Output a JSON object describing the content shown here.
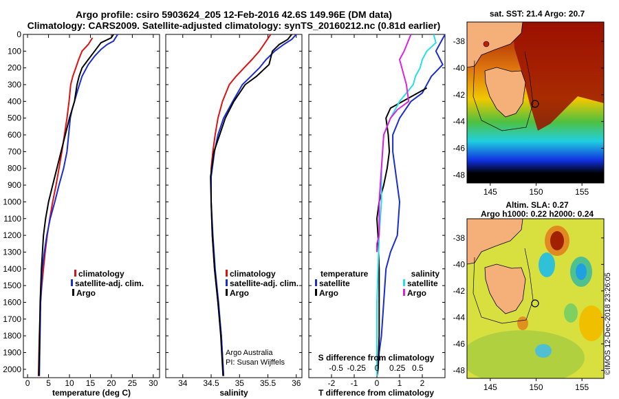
{
  "header": {
    "title_line1": "Argo profile: csiro 5903624_205 12-Feb-2016 42.6S 149.96E (DM data)",
    "title_line2": "Climatology: CARS2009. Satellite-adjusted climatology: synTS_20160212.nc (0.81d earlier)"
  },
  "colors": {
    "climatology": "#e01010",
    "satellite": "#1a2bd6",
    "argo": "#000000",
    "sat_salinity": "#22e0e8",
    "argo_salinity": "#e020e0"
  },
  "chart_data": [
    {
      "type": "line",
      "title": "",
      "xlabel": "temperature (deg C)",
      "ylabel": "",
      "xlim": [
        -1,
        31.5
      ],
      "ylim": [
        2050,
        0
      ],
      "x_ticks": [
        0,
        5,
        10,
        15,
        20,
        25,
        30
      ],
      "y_ticks": [
        0,
        100,
        200,
        300,
        400,
        500,
        600,
        700,
        800,
        900,
        1000,
        1100,
        1200,
        1300,
        1400,
        1500,
        1600,
        1700,
        1800,
        1900,
        2000
      ],
      "legend": {
        "position": "lower-center",
        "entries": [
          "climatology",
          "satellite-adj. clim.",
          "Argo"
        ]
      },
      "series": [
        {
          "name": "climatology",
          "color_key": "climatology",
          "x": [
            15.5,
            14.5,
            13.0,
            12.2,
            11.5,
            10.8,
            10.3,
            9.9,
            9.4,
            8.8,
            8.2,
            7.5,
            6.8,
            6.0,
            5.3,
            4.7,
            4.2,
            3.8,
            3.4,
            3.1,
            2.8,
            2.6
          ],
          "y": [
            20,
            60,
            100,
            150,
            200,
            250,
            300,
            400,
            500,
            600,
            700,
            800,
            900,
            1000,
            1100,
            1200,
            1300,
            1400,
            1500,
            1600,
            1800,
            2040
          ]
        },
        {
          "name": "satellite-adj. clim.",
          "color_key": "satellite",
          "x": [
            21.5,
            20.5,
            19.0,
            17.5,
            16.0,
            14.5,
            13.0,
            12.0,
            11.2,
            10.6,
            10.2,
            9.8,
            9.4,
            8.6,
            7.5,
            6.5,
            5.4,
            4.6,
            4.0,
            3.5,
            3.1,
            2.8
          ],
          "y": [
            0,
            40,
            60,
            90,
            130,
            180,
            250,
            330,
            400,
            450,
            500,
            600,
            700,
            800,
            900,
            1000,
            1100,
            1200,
            1300,
            1400,
            1600,
            2040
          ]
        },
        {
          "name": "Argo",
          "color_key": "argo",
          "x": [
            20.5,
            20.0,
            17.5,
            16.0,
            14.5,
            13.0,
            12.3,
            11.8,
            11.2,
            10.6,
            10.0,
            9.0,
            8.0,
            7.0,
            6.0,
            5.0,
            4.3,
            3.8,
            3.3,
            3.0,
            2.7
          ],
          "y": [
            0,
            20,
            50,
            100,
            150,
            200,
            250,
            300,
            400,
            450,
            500,
            600,
            700,
            800,
            900,
            1000,
            1100,
            1200,
            1400,
            1600,
            2040
          ]
        }
      ]
    },
    {
      "type": "line",
      "title": "",
      "xlabel": "salinity",
      "ylabel": "",
      "xlim": [
        33.7,
        36.1
      ],
      "ylim": [
        2050,
        0
      ],
      "x_ticks": [
        34,
        34.5,
        35,
        35.5,
        36
      ],
      "legend": {
        "position": "lower-center",
        "entries": [
          "climatology",
          "satellite-adj. clim.",
          "Argo"
        ]
      },
      "annotations": [
        "Argo Australia",
        "PI: Susan Wijffels"
      ],
      "series": [
        {
          "name": "climatology",
          "color_key": "climatology",
          "x": [
            35.55,
            35.45,
            35.35,
            35.22,
            35.08,
            34.94,
            34.82,
            34.7,
            34.62,
            34.57,
            34.53,
            34.5,
            34.5,
            34.52,
            34.56,
            34.62,
            34.68,
            34.72
          ],
          "y": [
            0,
            50,
            100,
            150,
            200,
            250,
            300,
            400,
            500,
            600,
            700,
            800,
            1000,
            1200,
            1400,
            1600,
            1800,
            2040
          ]
        },
        {
          "name": "satellite-adj. clim.",
          "color_key": "satellite",
          "x": [
            36.0,
            35.92,
            35.78,
            35.62,
            35.47,
            35.35,
            35.2,
            35.05,
            34.88,
            34.72,
            34.62,
            34.56,
            34.5,
            34.5,
            34.53,
            34.57,
            34.63,
            34.68,
            34.72
          ],
          "y": [
            0,
            30,
            60,
            100,
            150,
            200,
            250,
            300,
            400,
            500,
            600,
            700,
            850,
            1000,
            1200,
            1400,
            1600,
            1800,
            2040
          ]
        },
        {
          "name": "Argo",
          "color_key": "argo",
          "x": [
            35.92,
            35.85,
            35.7,
            35.58,
            35.52,
            35.3,
            35.1,
            34.9,
            34.75,
            34.65,
            34.55,
            34.49,
            34.5,
            34.52,
            34.56,
            34.62,
            34.67,
            34.71
          ],
          "y": [
            0,
            30,
            60,
            100,
            180,
            250,
            300,
            400,
            500,
            600,
            700,
            850,
            1000,
            1200,
            1400,
            1600,
            1800,
            2040
          ]
        }
      ]
    },
    {
      "type": "line",
      "title": "",
      "xlabel": "T difference from climatology",
      "xlabel2": "S difference from climatology",
      "ylabel": "",
      "xlim": [
        -3,
        3
      ],
      "ylim": [
        2050,
        0
      ],
      "x_ticks": [
        -2,
        -1,
        0,
        1,
        2
      ],
      "x2_ticks": [
        "-0.5",
        "-0.25",
        "0",
        "0.25",
        "0.5"
      ],
      "legend": {
        "position": "lower-center",
        "entries": [
          "temperature",
          "satellite",
          "Argo",
          "salinity",
          "satellite",
          "Argo"
        ]
      },
      "series": [
        {
          "name": "satellite",
          "group": "temperature",
          "color_key": "satellite",
          "x": [
            3.0,
            2.6,
            2.9,
            2.4,
            2.2,
            2.0,
            1.5,
            1.0,
            0.7,
            0.7,
            0.8,
            0.9,
            1.0,
            0.9,
            0.6,
            0.4,
            0.3,
            0.2,
            0.1,
            0.05,
            0.0
          ],
          "y": [
            0,
            100,
            180,
            250,
            300,
            350,
            400,
            500,
            600,
            700,
            800,
            900,
            1000,
            1200,
            1300,
            1400,
            1600,
            1800,
            1900,
            2000,
            2040
          ]
        },
        {
          "name": "Argo",
          "group": "temperature",
          "color_key": "argo",
          "x": [
            2.2,
            1.4,
            0.6,
            0.4,
            0.5,
            0.55,
            0.45,
            0.3,
            0.1,
            0.0,
            0.05,
            0.1,
            0.1,
            0.1,
            0.05,
            0.0
          ],
          "y": [
            320,
            380,
            440,
            500,
            600,
            700,
            800,
            900,
            1000,
            1100,
            1200,
            1400,
            1600,
            1800,
            2000,
            2040
          ]
        },
        {
          "name": "satellite",
          "group": "salinity",
          "color_key": "sat_salinity",
          "x": [
            2.5,
            2.6,
            2.2,
            2.0,
            1.9,
            1.7,
            1.6,
            1.3,
            1.0,
            0.6,
            0.3,
            0.2,
            0.2,
            0.1,
            0.0,
            0.0
          ],
          "y": [
            0,
            50,
            100,
            150,
            200,
            250,
            300,
            350,
            400,
            500,
            600,
            800,
            1000,
            1200,
            1600,
            2040
          ]
        },
        {
          "name": "Argo",
          "group": "salinity",
          "color_key": "argo_salinity",
          "x": [
            1.5,
            1.2,
            1.0,
            1.1,
            1.2,
            1.3,
            1.4,
            0.9,
            0.6,
            0.3,
            0.2,
            0.1,
            0.1,
            0.0,
            0.0
          ],
          "y": [
            0,
            100,
            150,
            200,
            250,
            300,
            400,
            450,
            500,
            600,
            800,
            1000,
            1200,
            1250,
            1300
          ]
        }
      ]
    }
  ],
  "maps": {
    "top": {
      "title": "sat. SST: 21.4 Argo: 20.7",
      "x_ticks": [
        "145",
        "150",
        "155"
      ],
      "y_ticks": [
        "-38",
        "-40",
        "-42",
        "-44",
        "-46",
        "-48"
      ]
    },
    "bottom": {
      "title_line1": "Altim. SLA: 0.27",
      "title_line2": "Argo h1000: 0.22 h2000: 0.24",
      "x_ticks": [
        "145",
        "150",
        "155"
      ],
      "y_ticks": [
        "-38",
        "-40",
        "-42",
        "-44",
        "-46",
        "-48"
      ]
    },
    "stamp": "©IMOS 12-Dec-2018 23:26:05"
  }
}
